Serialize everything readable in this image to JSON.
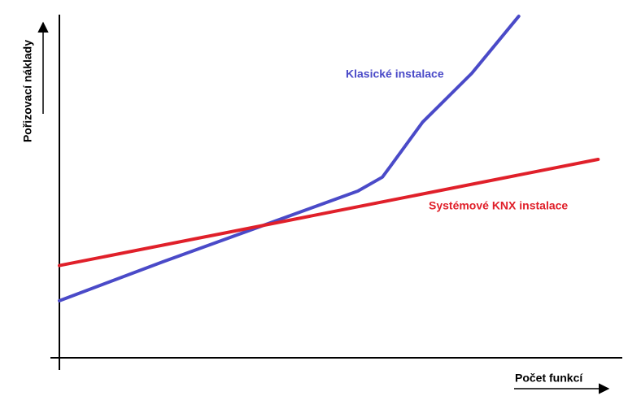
{
  "chart_data": {
    "type": "line",
    "y_label": "Pořizovací náklady",
    "x_label": "Počet funkcí",
    "xlim": [
      0,
      100
    ],
    "ylim": [
      0,
      100
    ],
    "series": [
      {
        "name": "Klasické instalace",
        "color": "#4a4ac8",
        "x": [
          0,
          18.5,
          37.4,
          53.4,
          57.8,
          59.2,
          65,
          73.8,
          82.2
        ],
        "values": [
          16.7,
          28.1,
          39.3,
          48.8,
          52.9,
          56,
          69,
          83.3,
          100
        ]
      },
      {
        "name": "Systémové KNX instalace",
        "color": "#e0202a",
        "x": [
          0,
          96.4
        ],
        "values": [
          27,
          58.1
        ]
      }
    ]
  }
}
